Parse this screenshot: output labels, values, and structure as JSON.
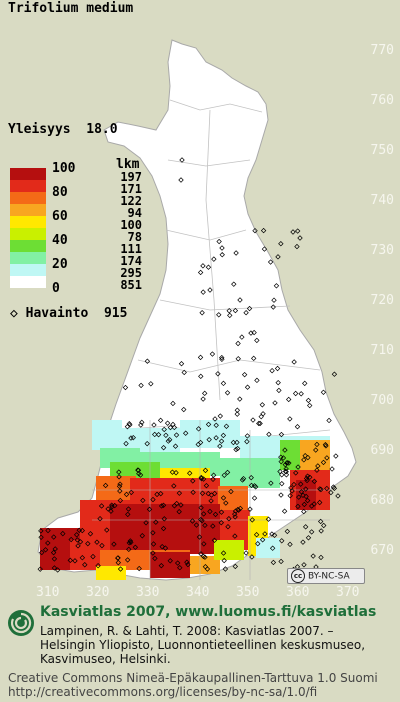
{
  "species": "Trifolium medium",
  "frequency": {
    "label": "Yleisyys",
    "value": "18.0"
  },
  "legend": {
    "count_header": "lkm",
    "percent_labels": [
      "100",
      "80",
      "60",
      "40",
      "20",
      "0"
    ],
    "classes": [
      {
        "color": "#b50f0f",
        "count": "197"
      },
      {
        "color": "#e22a1a",
        "count": "171"
      },
      {
        "color": "#f46a17",
        "count": "122"
      },
      {
        "color": "#f8a620",
        "count": "94"
      },
      {
        "color": "#ffe800",
        "count": "100"
      },
      {
        "color": "#c9f000",
        "count": "78"
      },
      {
        "color": "#6dde34",
        "count": "111"
      },
      {
        "color": "#82f0a4",
        "count": "174"
      },
      {
        "color": "#bff7f4",
        "count": "295"
      },
      {
        "color": "#ffffff",
        "count": "851"
      }
    ]
  },
  "observations": {
    "label": "Havainto",
    "count": "915"
  },
  "grid_y_labels": [
    "770",
    "760",
    "750",
    "740",
    "730",
    "720",
    "710",
    "700",
    "690",
    "680",
    "670"
  ],
  "grid_x_labels": [
    "310",
    "320",
    "330",
    "340",
    "350",
    "360",
    "370"
  ],
  "license_badge": "BY-NC-SA",
  "footer": {
    "title": "Kasviatlas 2007, www.luomus.fi/kasviatlas",
    "lines": [
      "Lampinen, R. & Lahti, T. 2008: Kasviatlas 2007. –",
      "Helsingin Yliopisto, Luonnontieteellinen keskusmuseo,",
      "Kasvimuseo, Helsinki."
    ],
    "license_lines": [
      "Creative Commons Nimeä-Epäkaupallinen-Tarttuva 1.0 Suomi",
      "http://creativecommons.org/licenses/by-nc-sa/1.0/fi"
    ]
  },
  "colors": {
    "background": "#d9dbc3",
    "land": "#ffffff",
    "border": "#b8b8b8",
    "footer_green": "#1f6f3a"
  }
}
